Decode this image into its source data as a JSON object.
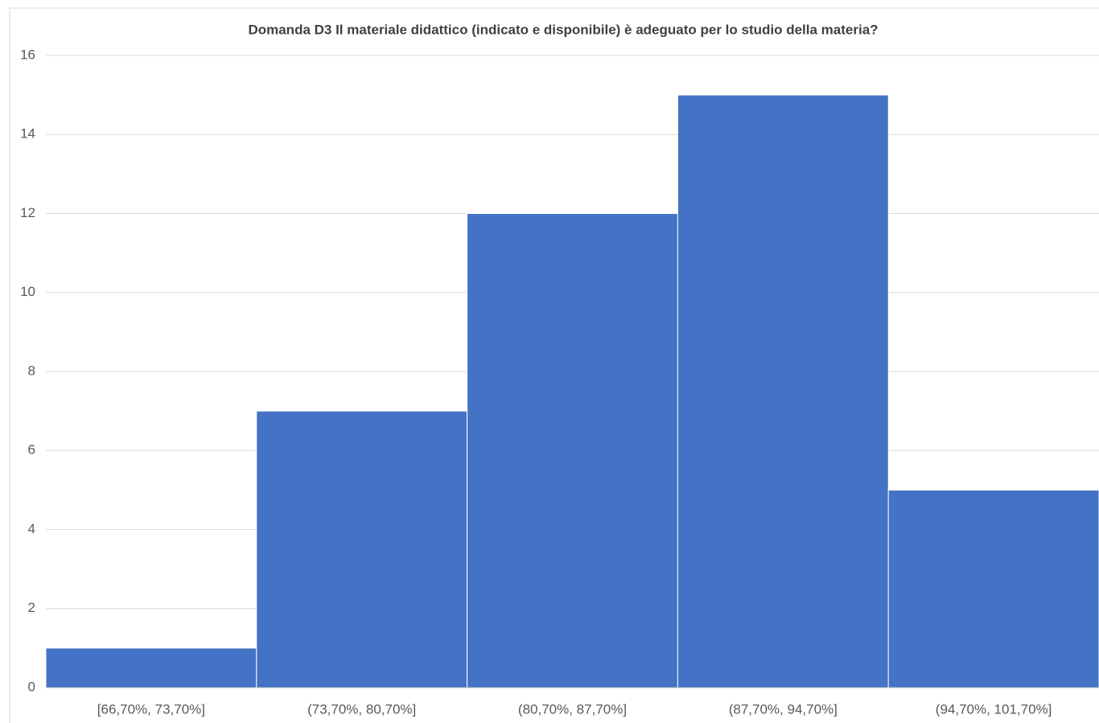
{
  "chart_data": {
    "type": "bar",
    "title": "Domanda D3 Il materiale didattico (indicato e disponibile) è adeguato per lo studio della materia?",
    "categories": [
      "[66,70%, 73,70%]",
      "(73,70%, 80,70%]",
      "(80,70%, 87,70%]",
      "(87,70%, 94,70%]",
      "(94,70%, 101,70%]"
    ],
    "values": [
      1,
      7,
      12,
      15,
      5
    ],
    "color": "#4472c4",
    "ylim": [
      0,
      16
    ],
    "yticks": [
      0,
      2,
      4,
      6,
      8,
      10,
      12,
      14,
      16
    ],
    "grid": true
  }
}
